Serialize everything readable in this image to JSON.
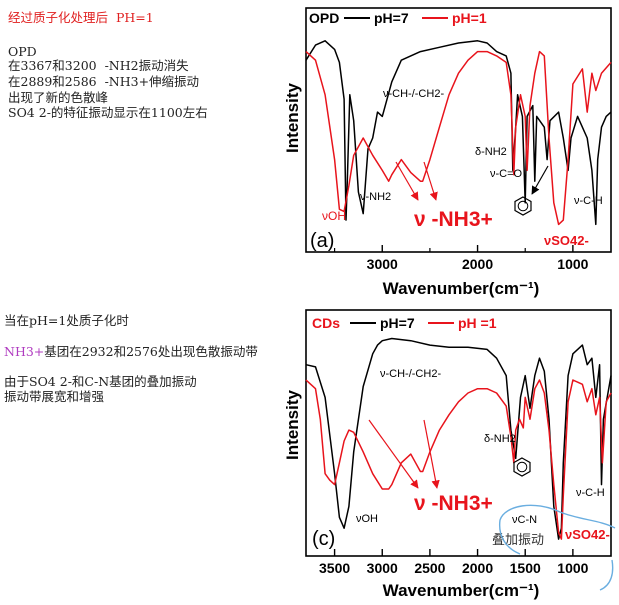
{
  "notes": {
    "top_title": "经过质子化处理后  PH=1",
    "top_lines": [
      "OPD",
      "在3367和3200  -NH2振动消失",
      "在2889和2586  -NH3+伸缩振动",
      "出现了新的色散峰",
      "SO4 2-的特征振动显示在1100左右"
    ],
    "mid_line1": "当在pH=1处质子化时",
    "mid_line2_prefix": "NH3+",
    "mid_line2_rest": "基团在2932和2576处出现色散振动带",
    "mid_line3": "由于SO4 2-和C-N基团的叠加振动",
    "mid_line4": "振动带展宽和增强"
  },
  "colors": {
    "ph7": "#000000",
    "ph1": "#e8141c",
    "highlight": "#6aaee0",
    "mag": "#b03cc0"
  },
  "chart_data": [
    {
      "type": "line",
      "panel": "(a)",
      "legend": {
        "prefix": "OPD",
        "items": [
          "pH=7",
          "pH=1"
        ]
      },
      "xlabel": "Wavenumber(cm⁻¹)",
      "ylabel": "Intensity",
      "xlim": [
        3800,
        600
      ],
      "ylim": [
        0,
        1
      ],
      "xticks": [
        3000,
        2000,
        1000
      ],
      "xticks_minor": [
        3500,
        2500,
        1500
      ],
      "series": [
        {
          "name": "pH=7",
          "points": [
            [
              3800,
              0.86
            ],
            [
              3700,
              0.93
            ],
            [
              3600,
              0.95
            ],
            [
              3500,
              0.91
            ],
            [
              3450,
              0.85
            ],
            [
              3400,
              0.68
            ],
            [
              3380,
              0.12
            ],
            [
              3367,
              0.3
            ],
            [
              3340,
              0.7
            ],
            [
              3300,
              0.58
            ],
            [
              3250,
              0.25
            ],
            [
              3200,
              0.15
            ],
            [
              3150,
              0.45
            ],
            [
              3100,
              0.5
            ],
            [
              3050,
              0.62
            ],
            [
              3000,
              0.6
            ],
            [
              2900,
              0.76
            ],
            [
              2800,
              0.86
            ],
            [
              2600,
              0.9
            ],
            [
              2400,
              0.92
            ],
            [
              2200,
              0.94
            ],
            [
              2000,
              0.95
            ],
            [
              1900,
              0.94
            ],
            [
              1800,
              0.9
            ],
            [
              1700,
              0.88
            ],
            [
              1650,
              0.8
            ],
            [
              1630,
              0.35
            ],
            [
              1600,
              0.55
            ],
            [
              1580,
              0.7
            ],
            [
              1530,
              0.6
            ],
            [
              1500,
              0.2
            ],
            [
              1480,
              0.6
            ],
            [
              1420,
              0.65
            ],
            [
              1400,
              0.3
            ],
            [
              1380,
              0.6
            ],
            [
              1300,
              0.55
            ],
            [
              1270,
              0.4
            ],
            [
              1240,
              0.58
            ],
            [
              1150,
              0.62
            ],
            [
              1100,
              0.5
            ],
            [
              1050,
              0.35
            ],
            [
              1020,
              0.5
            ],
            [
              950,
              0.6
            ],
            [
              900,
              0.55
            ],
            [
              850,
              0.5
            ],
            [
              800,
              0.35
            ],
            [
              760,
              0.1
            ],
            [
              740,
              0.4
            ],
            [
              700,
              0.55
            ],
            [
              650,
              0.6
            ],
            [
              600,
              0.62
            ]
          ]
        },
        {
          "name": "pH=1",
          "points": [
            [
              3800,
              0.9
            ],
            [
              3700,
              0.86
            ],
            [
              3600,
              0.7
            ],
            [
              3500,
              0.4
            ],
            [
              3450,
              0.17
            ],
            [
              3400,
              0.16
            ],
            [
              3350,
              0.28
            ],
            [
              3300,
              0.42
            ],
            [
              3200,
              0.5
            ],
            [
              3100,
              0.42
            ],
            [
              3000,
              0.35
            ],
            [
              2932,
              0.3
            ],
            [
              2900,
              0.33
            ],
            [
              2800,
              0.4
            ],
            [
              2700,
              0.34
            ],
            [
              2600,
              0.3
            ],
            [
              2576,
              0.3
            ],
            [
              2500,
              0.4
            ],
            [
              2400,
              0.55
            ],
            [
              2300,
              0.7
            ],
            [
              2200,
              0.8
            ],
            [
              2100,
              0.86
            ],
            [
              2000,
              0.9
            ],
            [
              1900,
              0.9
            ],
            [
              1800,
              0.88
            ],
            [
              1700,
              0.85
            ],
            [
              1650,
              0.7
            ],
            [
              1620,
              0.33
            ],
            [
              1600,
              0.55
            ],
            [
              1550,
              0.7
            ],
            [
              1500,
              0.6
            ],
            [
              1480,
              0.35
            ],
            [
              1450,
              0.65
            ],
            [
              1400,
              0.8
            ],
            [
              1350,
              0.9
            ],
            [
              1300,
              0.88
            ],
            [
              1250,
              0.5
            ],
            [
              1200,
              0.2
            ],
            [
              1150,
              0.1
            ],
            [
              1100,
              0.12
            ],
            [
              1050,
              0.4
            ],
            [
              1000,
              0.75
            ],
            [
              900,
              0.82
            ],
            [
              850,
              0.62
            ],
            [
              800,
              0.8
            ],
            [
              760,
              0.72
            ],
            [
              700,
              0.8
            ],
            [
              600,
              0.85
            ]
          ]
        }
      ],
      "annotations": [
        "ν-CH-/-CH2-",
        "ν-NH2",
        "νOH",
        "ν -NH3+",
        "δ-NH2",
        "ν-C=O",
        "νSO42-",
        "ν-C-H"
      ]
    },
    {
      "type": "line",
      "panel": "(c)",
      "legend": {
        "prefix": "CDs",
        "items": [
          "pH=7",
          "pH =1"
        ]
      },
      "xlabel": "Wavenumber(cm⁻¹)",
      "ylabel": "Intensity",
      "xlim": [
        3800,
        600
      ],
      "ylim": [
        0,
        1
      ],
      "xticks": [
        3500,
        3000,
        2500,
        2000,
        1500,
        1000
      ],
      "series": [
        {
          "name": "pH=7",
          "points": [
            [
              3800,
              0.85
            ],
            [
              3700,
              0.84
            ],
            [
              3600,
              0.7
            ],
            [
              3500,
              0.35
            ],
            [
              3450,
              0.15
            ],
            [
              3400,
              0.1
            ],
            [
              3350,
              0.2
            ],
            [
              3300,
              0.45
            ],
            [
              3200,
              0.75
            ],
            [
              3100,
              0.9
            ],
            [
              3050,
              0.94
            ],
            [
              3000,
              0.96
            ],
            [
              2900,
              0.97
            ],
            [
              2700,
              0.96
            ],
            [
              2500,
              0.94
            ],
            [
              2300,
              0.93
            ],
            [
              2100,
              0.93
            ],
            [
              1900,
              0.92
            ],
            [
              1800,
              0.88
            ],
            [
              1700,
              0.8
            ],
            [
              1650,
              0.55
            ],
            [
              1600,
              0.42
            ],
            [
              1550,
              0.7
            ],
            [
              1500,
              0.8
            ],
            [
              1450,
              0.65
            ],
            [
              1400,
              0.8
            ],
            [
              1350,
              0.88
            ],
            [
              1300,
              0.82
            ],
            [
              1250,
              0.6
            ],
            [
              1200,
              0.2
            ],
            [
              1150,
              0.05
            ],
            [
              1120,
              0.1
            ],
            [
              1100,
              0.4
            ],
            [
              1050,
              0.8
            ],
            [
              1000,
              0.9
            ],
            [
              900,
              0.94
            ],
            [
              850,
              0.85
            ],
            [
              800,
              0.88
            ],
            [
              760,
              0.7
            ],
            [
              720,
              0.85
            ],
            [
              700,
              0.3
            ],
            [
              680,
              0.6
            ],
            [
              600,
              0.8
            ]
          ]
        },
        {
          "name": "pH =1",
          "points": [
            [
              3800,
              0.78
            ],
            [
              3700,
              0.74
            ],
            [
              3650,
              0.6
            ],
            [
              3600,
              0.35
            ],
            [
              3550,
              0.32
            ],
            [
              3500,
              0.3
            ],
            [
              3450,
              0.4
            ],
            [
              3400,
              0.5
            ],
            [
              3350,
              0.55
            ],
            [
              3300,
              0.54
            ],
            [
              3200,
              0.45
            ],
            [
              3100,
              0.35
            ],
            [
              3000,
              0.28
            ],
            [
              2932,
              0.28
            ],
            [
              2900,
              0.3
            ],
            [
              2800,
              0.4
            ],
            [
              2700,
              0.44
            ],
            [
              2650,
              0.4
            ],
            [
              2600,
              0.36
            ],
            [
              2576,
              0.36
            ],
            [
              2500,
              0.45
            ],
            [
              2400,
              0.55
            ],
            [
              2300,
              0.62
            ],
            [
              2200,
              0.68
            ],
            [
              2100,
              0.72
            ],
            [
              2000,
              0.74
            ],
            [
              1900,
              0.74
            ],
            [
              1800,
              0.72
            ],
            [
              1700,
              0.66
            ],
            [
              1650,
              0.52
            ],
            [
              1620,
              0.4
            ],
            [
              1600,
              0.55
            ],
            [
              1560,
              0.6
            ],
            [
              1520,
              0.56
            ],
            [
              1500,
              0.7
            ],
            [
              1450,
              0.6
            ],
            [
              1400,
              0.74
            ],
            [
              1350,
              0.78
            ],
            [
              1300,
              0.72
            ],
            [
              1250,
              0.55
            ],
            [
              1200,
              0.3
            ],
            [
              1150,
              0.08
            ],
            [
              1120,
              0.05
            ],
            [
              1100,
              0.25
            ],
            [
              1050,
              0.68
            ],
            [
              1000,
              0.78
            ],
            [
              900,
              0.76
            ],
            [
              850,
              0.68
            ],
            [
              800,
              0.74
            ],
            [
              760,
              0.62
            ],
            [
              720,
              0.7
            ],
            [
              690,
              0.4
            ],
            [
              650,
              0.68
            ],
            [
              600,
              0.72
            ]
          ]
        }
      ],
      "annotations": [
        "ν-CH-/-CH2-",
        "νOH",
        "ν -NH3+",
        "δ-NH2",
        "νC-N",
        "νSO42-",
        "ν-C-H",
        "叠加振动"
      ]
    }
  ]
}
